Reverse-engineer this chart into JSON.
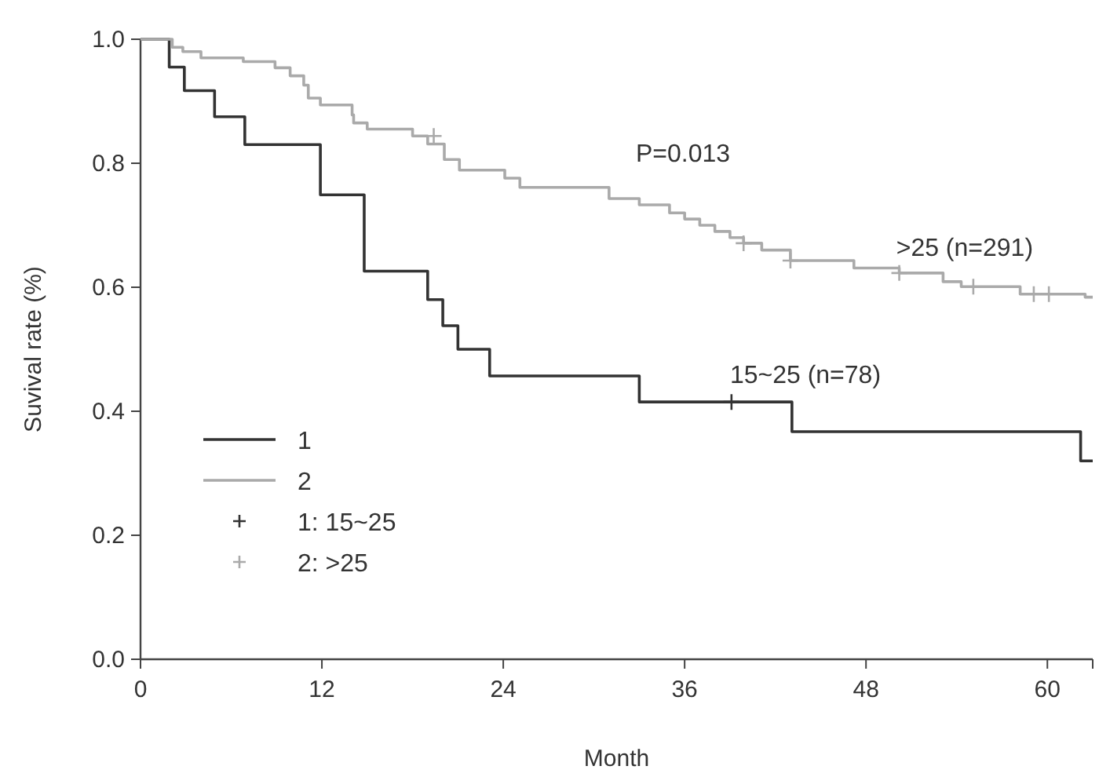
{
  "chart_data": {
    "type": "step",
    "xlabel": "Month",
    "ylabel": "Suvival rate (%)",
    "xlim": [
      0,
      63
    ],
    "ylim": [
      0,
      1
    ],
    "xticks": [
      0,
      12,
      24,
      36,
      48,
      60
    ],
    "yticks": [
      {
        "value": 0,
        "label": "0.0"
      },
      {
        "value": 0.2,
        "label": "0.2"
      },
      {
        "value": 0.4,
        "label": "0.4"
      },
      {
        "value": 0.6,
        "label": "0.6"
      },
      {
        "value": 0.8,
        "label": "0.8"
      },
      {
        "value": 1,
        "label": "1.0"
      }
    ],
    "legend": "bottom left",
    "grid": false,
    "annotations": [
      "P=0.013",
      {
        "text": ">25 (n=291)",
        "x": 50,
        "y": 0.62
      },
      {
        "text": "15~25 (n=78)",
        "x": 39,
        "y": 0.415
      }
    ],
    "series": [
      {
        "name": "1",
        "color": "#333333",
        "x": [
          0,
          1.9,
          2.9,
          4.9,
          6.9,
          11.9,
          14.8,
          19.0,
          20.0,
          21.0,
          23.1,
          33.0,
          43.1,
          62.2,
          63
        ],
        "values": [
          1,
          0.955,
          0.917,
          0.875,
          0.83,
          0.749,
          0.626,
          0.58,
          0.538,
          0.5,
          0.457,
          0.415,
          0.367,
          0.32,
          0.32
        ]
      },
      {
        "name": "2",
        "color": "#aaaaaa",
        "x": [
          0,
          2.1,
          2.8,
          4.0,
          6.8,
          8.9,
          9.9,
          10.8,
          11.1,
          11.9,
          14.0,
          14.1,
          15.0,
          18.0,
          19.0,
          20.1,
          21.1,
          24.1,
          25.1,
          31.0,
          33.0,
          35.0,
          36.0,
          37.0,
          38.0,
          39.0,
          39.9,
          41.1,
          43.0,
          47.2,
          50.2,
          53.1,
          54.3,
          58.2,
          62.5,
          63
        ],
        "values": [
          1,
          0.987,
          0.98,
          0.97,
          0.964,
          0.954,
          0.941,
          0.926,
          0.905,
          0.894,
          0.878,
          0.865,
          0.855,
          0.844,
          0.831,
          0.806,
          0.789,
          0.776,
          0.761,
          0.743,
          0.733,
          0.72,
          0.71,
          0.7,
          0.69,
          0.68,
          0.671,
          0.66,
          0.643,
          0.631,
          0.623,
          0.609,
          0.601,
          0.589,
          0.584,
          0.584
        ]
      },
      {
        "name": "1: 15~25",
        "type": "scatter",
        "color": "#333333",
        "marker": "cross",
        "x": [
          39.1
        ],
        "values": [
          0.415
        ]
      },
      {
        "name": "2: >25",
        "type": "scatter",
        "color": "#aaaaaa",
        "marker": "cross",
        "x": [
          19.4,
          39.9,
          43.0,
          50.2,
          55.1,
          59.1,
          60.1
        ],
        "values": [
          0.844,
          0.671,
          0.643,
          0.623,
          0.601,
          0.589,
          0.589
        ]
      }
    ]
  }
}
